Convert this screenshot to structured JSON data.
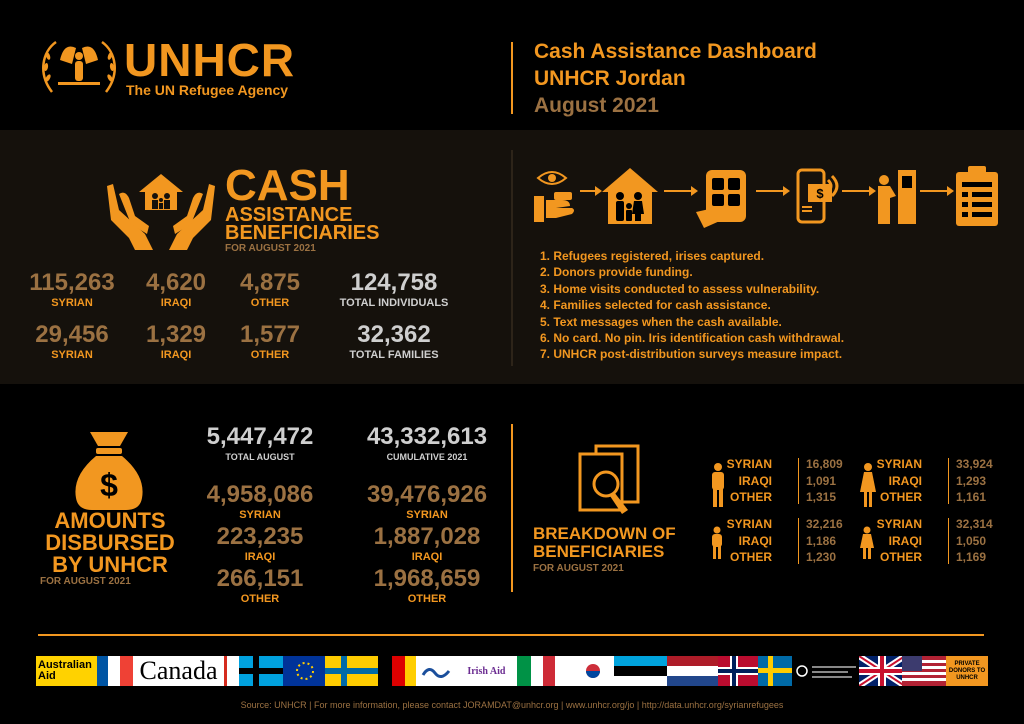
{
  "header": {
    "org_name": "UNHCR",
    "org_sub": "The UN Refugee Agency",
    "title": "Cash Assistance Dashboard",
    "subtitle": "UNHCR Jordan",
    "date": "August 2021"
  },
  "cash": {
    "title": "CASH",
    "sub1": "ASSISTANCE",
    "sub2": "BENEFICIARIES",
    "for": "FOR AUGUST 2021",
    "individuals": [
      {
        "value": "115,263",
        "label": "SYRIAN"
      },
      {
        "value": "4,620",
        "label": "IRAQI"
      },
      {
        "value": "4,875",
        "label": "OTHER"
      },
      {
        "value": "124,758",
        "label": "TOTAL INDIVIDUALS"
      }
    ],
    "families": [
      {
        "value": "29,456",
        "label": "SYRIAN"
      },
      {
        "value": "1,329",
        "label": "IRAQI"
      },
      {
        "value": "1,577",
        "label": "OTHER"
      },
      {
        "value": "32,362",
        "label": "TOTAL FAMILIES"
      }
    ]
  },
  "process": {
    "icons": [
      "eye-scan-icon",
      "house-family-icon",
      "tablet-form-icon",
      "phone-message-icon",
      "atm-withdrawal-icon",
      "clipboard-survey-icon"
    ],
    "steps": [
      "1. Refugees registered, irises captured.",
      "2. Donors provide funding.",
      "3. Home visits conducted to assess vulnerability.",
      "4. Families selected for cash assistance.",
      "5. Text messages when the cash available.",
      "6. No card. No pin. Iris identification cash withdrawal.",
      "7. UNHCR post-distribution surveys measure impact."
    ]
  },
  "amounts": {
    "title": "AMOUNTS DISBURSED BY UNHCR",
    "for": "FOR AUGUST 2021",
    "august": {
      "total": "5,447,472",
      "total_label": "TOTAL AUGUST",
      "syrian": "4,958,086",
      "iraqi": "223,235",
      "other": "266,151"
    },
    "cumulative": {
      "total": "43,332,613",
      "total_label": "CUMULATIVE 2021",
      "syrian": "39,476,926",
      "iraqi": "1,887,028",
      "other": "1,968,659"
    },
    "labels": {
      "syrian": "SYRIAN",
      "iraqi": "IRAQI",
      "other": "OTHER"
    }
  },
  "breakdown": {
    "title1": "BREAKDOWN OF",
    "title2": "BENEFICIARIES",
    "for": "FOR AUGUST 2021",
    "labels": [
      "SYRIAN",
      "IRAQI",
      "OTHER"
    ],
    "groups": [
      {
        "name": "adult-men",
        "values": [
          "16,809",
          "1,091",
          "1,315"
        ]
      },
      {
        "name": "adult-women",
        "values": [
          "33,924",
          "1,293",
          "1,161"
        ]
      },
      {
        "name": "boys",
        "values": [
          "32,216",
          "1,186",
          "1,230"
        ]
      },
      {
        "name": "girls",
        "values": [
          "32,314",
          "1,050",
          "1,169"
        ]
      }
    ]
  },
  "donors": {
    "australia": "Australian Aid",
    "canada": "Canada",
    "irish": "Irish Aid",
    "private": "PRIVATE DONORS TO UNHCR"
  },
  "footer": {
    "source": "Source: UNHCR | For more information, please contact JORAMDAT@unhcr.org | www.unhcr.org/jo | http://data.unhcr.org/syrianrefugees"
  },
  "colors": {
    "accent": "#f29720",
    "muted": "#9b7142",
    "light": "#cfcfcf",
    "background": "#000000",
    "band": "#15110c"
  }
}
